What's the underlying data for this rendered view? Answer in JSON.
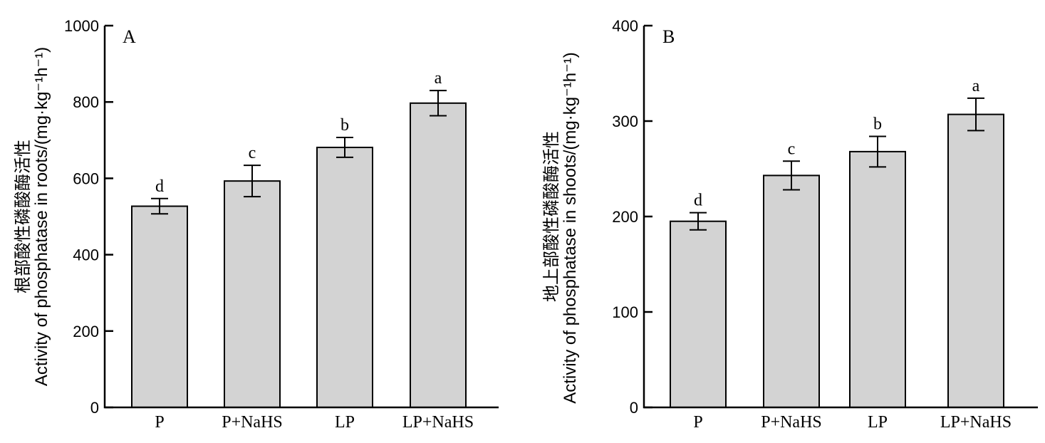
{
  "chart_data": [
    {
      "type": "bar",
      "panel": "A",
      "ylabel_cn": "根部酸性磷酸酶活性",
      "ylabel_en": "Activity of phosphatase in roots/(mg·kg⁻¹h⁻¹)",
      "categories": [
        "P",
        "P+NaHS",
        "LP",
        "LP+NaHS"
      ],
      "values": [
        527,
        593,
        681,
        797
      ],
      "errors": [
        20,
        41,
        26,
        33
      ],
      "significance": [
        "d",
        "c",
        "b",
        "a"
      ],
      "ylim": [
        0,
        1000
      ],
      "yticks": [
        0,
        200,
        400,
        600,
        800,
        1000
      ]
    },
    {
      "type": "bar",
      "panel": "B",
      "ylabel_cn": "地上部酸性磷酸酶活性",
      "ylabel_en": "Activity of phosphatase in shoots/(mg·kg⁻¹h⁻¹)",
      "categories": [
        "P",
        "P+NaHS",
        "LP",
        "LP+NaHS"
      ],
      "values": [
        195,
        243,
        268,
        307
      ],
      "errors": [
        9,
        15,
        16,
        17
      ],
      "significance": [
        "d",
        "c",
        "b",
        "a"
      ],
      "ylim": [
        0,
        400
      ],
      "yticks": [
        0,
        100,
        200,
        300,
        400
      ]
    }
  ]
}
